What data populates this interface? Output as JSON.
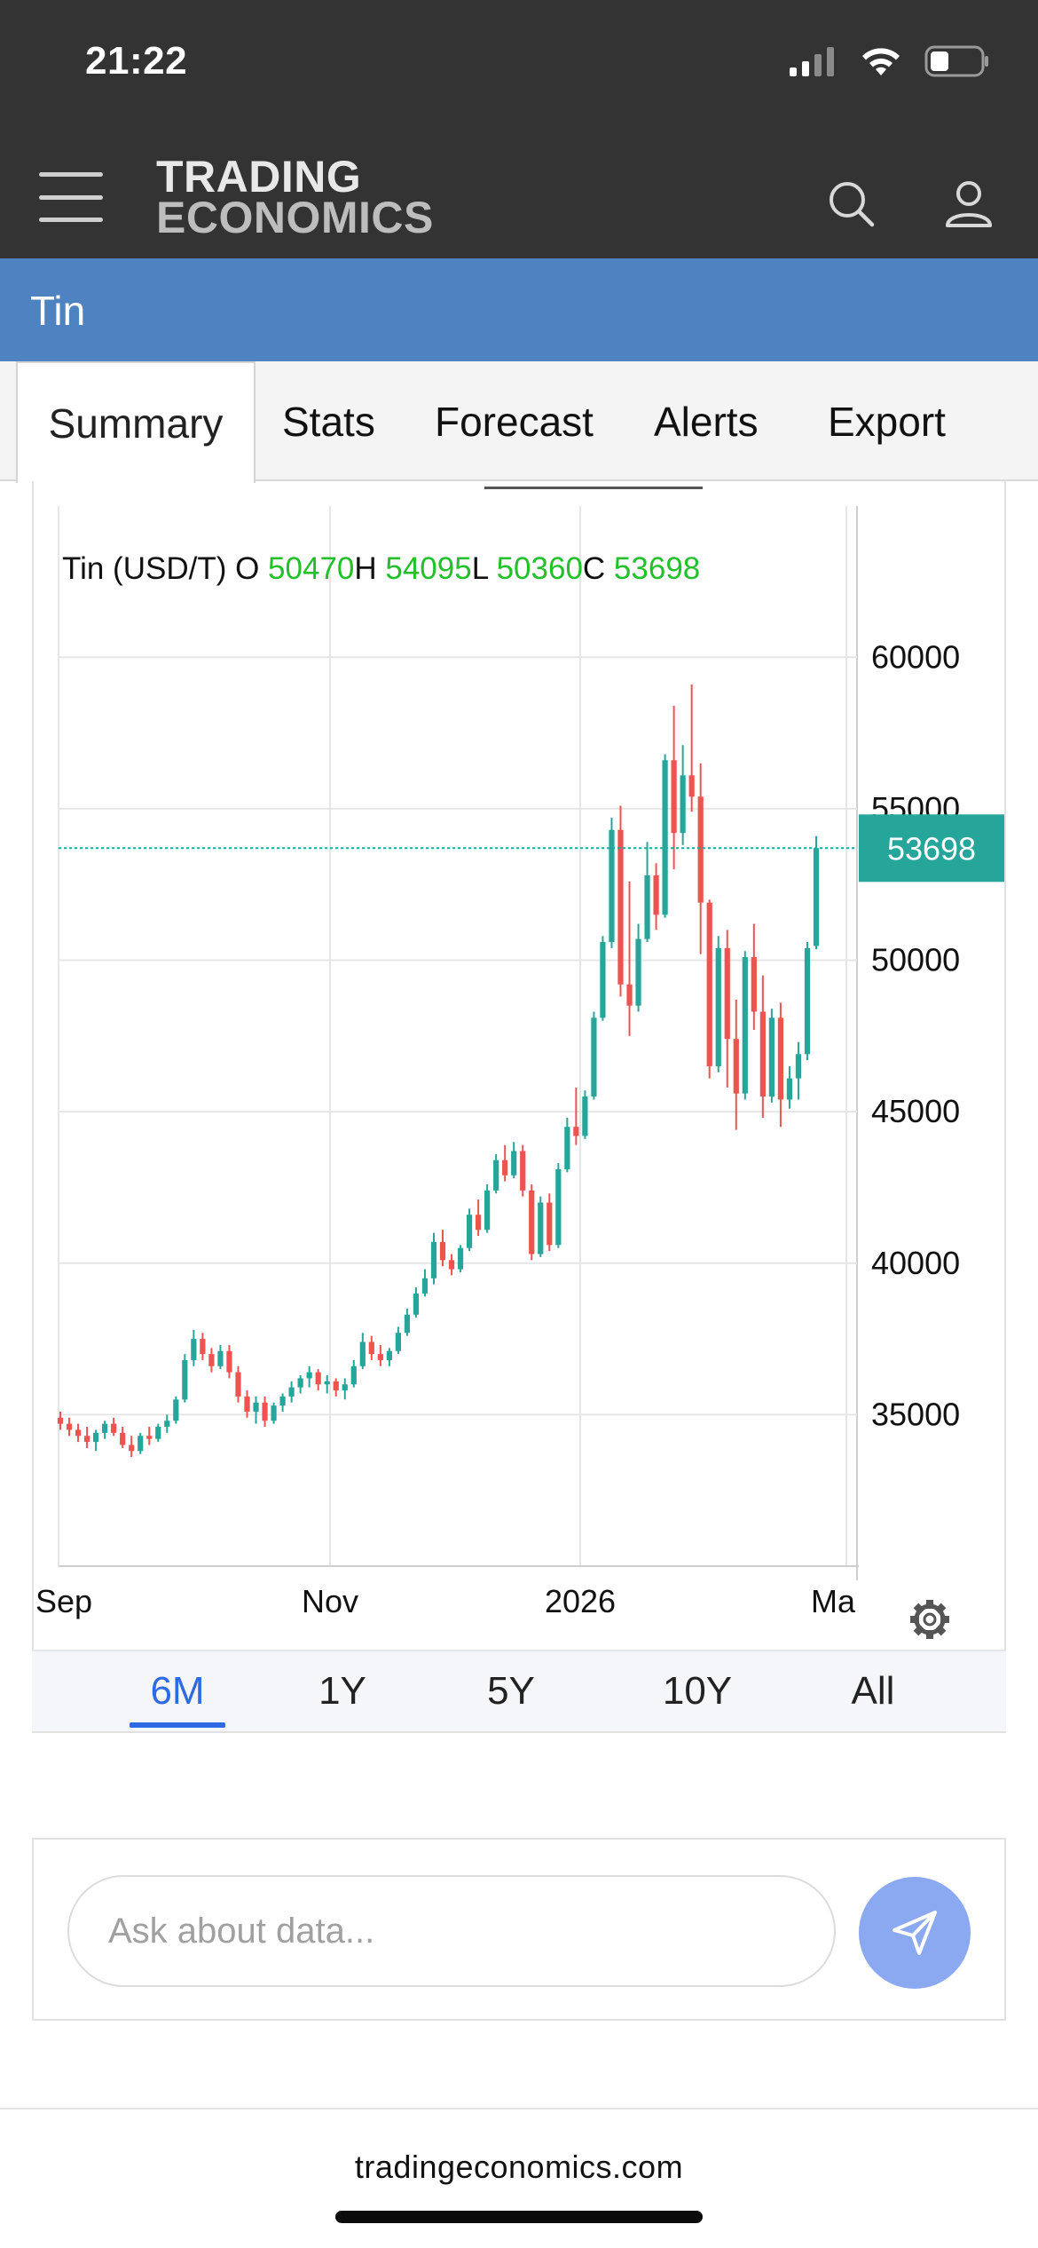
{
  "status_bar": {
    "time": "21:22"
  },
  "header": {
    "logo_line1": "TRADING",
    "logo_line2": "ECONOMICS"
  },
  "title_bar": {
    "title": "Tin"
  },
  "tabs": [
    {
      "label": "Summary",
      "active": true
    },
    {
      "label": "Stats",
      "active": false
    },
    {
      "label": "Forecast",
      "active": false
    },
    {
      "label": "Alerts",
      "active": false
    },
    {
      "label": "Export",
      "active": false
    }
  ],
  "chart_data": {
    "type": "candlestick",
    "ohlc_legend": {
      "symbol": "Tin (USD/T)",
      "open_label": "O",
      "open": "50470",
      "high_label": "H",
      "high": "54095",
      "low_label": "L",
      "low": "50360",
      "close_label": "C",
      "close": "53698"
    },
    "last_price": "53698",
    "y_ticks": [
      "60000",
      "55000",
      "50000",
      "45000",
      "40000",
      "35000"
    ],
    "x_ticks": [
      "Sep",
      "Nov",
      "2026",
      "Ma"
    ],
    "ylim": [
      30000,
      62000
    ],
    "colors": {
      "up": "#26a69a",
      "down": "#ef5350",
      "grid": "#e6e6e6",
      "price_line": "#26a69a",
      "legend_value": "#22c02a"
    },
    "candles": [
      [
        34900,
        35100,
        34500,
        34700
      ],
      [
        34700,
        34900,
        34300,
        34500
      ],
      [
        34500,
        34700,
        34100,
        34300
      ],
      [
        34300,
        34600,
        33900,
        34100
      ],
      [
        34100,
        34500,
        33800,
        34400
      ],
      [
        34400,
        34800,
        34200,
        34700
      ],
      [
        34700,
        34900,
        34300,
        34400
      ],
      [
        34400,
        34600,
        33900,
        34000
      ],
      [
        34000,
        34300,
        33600,
        33800
      ],
      [
        33800,
        34400,
        33700,
        34300
      ],
      [
        34300,
        34600,
        34000,
        34200
      ],
      [
        34200,
        34700,
        34100,
        34600
      ],
      [
        34600,
        35000,
        34400,
        34800
      ],
      [
        34800,
        35600,
        34700,
        35500
      ],
      [
        35500,
        37000,
        35400,
        36800
      ],
      [
        36800,
        37800,
        36600,
        37500
      ],
      [
        37500,
        37700,
        36800,
        37000
      ],
      [
        37000,
        37200,
        36400,
        36600
      ],
      [
        36600,
        37300,
        36500,
        37100
      ],
      [
        37100,
        37300,
        36200,
        36400
      ],
      [
        36400,
        36600,
        35400,
        35600
      ],
      [
        35600,
        35800,
        34900,
        35100
      ],
      [
        35100,
        35600,
        34700,
        35400
      ],
      [
        35400,
        35600,
        34600,
        34800
      ],
      [
        34800,
        35400,
        34700,
        35300
      ],
      [
        35300,
        35700,
        35100,
        35600
      ],
      [
        35600,
        36100,
        35400,
        35900
      ],
      [
        35900,
        36300,
        35700,
        36200
      ],
      [
        36200,
        36600,
        35900,
        36400
      ],
      [
        36400,
        36500,
        35800,
        36000
      ],
      [
        36000,
        36300,
        35700,
        36100
      ],
      [
        36100,
        36200,
        35600,
        35800
      ],
      [
        35800,
        36200,
        35500,
        36000
      ],
      [
        36000,
        36800,
        35900,
        36600
      ],
      [
        36600,
        37700,
        36500,
        37400
      ],
      [
        37400,
        37600,
        36800,
        37000
      ],
      [
        37000,
        37300,
        36600,
        36800
      ],
      [
        36800,
        37200,
        36600,
        37100
      ],
      [
        37100,
        37900,
        37000,
        37700
      ],
      [
        37700,
        38500,
        37600,
        38300
      ],
      [
        38300,
        39200,
        38200,
        39000
      ],
      [
        39000,
        39800,
        38900,
        39500
      ],
      [
        39500,
        41000,
        39300,
        40700
      ],
      [
        40700,
        41100,
        39900,
        40100
      ],
      [
        40100,
        40300,
        39600,
        39800
      ],
      [
        39800,
        40600,
        39700,
        40500
      ],
      [
        40500,
        41800,
        40400,
        41600
      ],
      [
        41600,
        42100,
        40900,
        41100
      ],
      [
        41100,
        42600,
        41000,
        42400
      ],
      [
        42400,
        43600,
        42300,
        43400
      ],
      [
        43400,
        43900,
        42700,
        42900
      ],
      [
        42900,
        44000,
        42800,
        43700
      ],
      [
        43700,
        43900,
        42200,
        42400
      ],
      [
        42400,
        42600,
        40100,
        40300
      ],
      [
        40300,
        42200,
        40200,
        42000
      ],
      [
        42000,
        42300,
        40400,
        40600
      ],
      [
        40600,
        43300,
        40500,
        43100
      ],
      [
        43100,
        44800,
        43000,
        44500
      ],
      [
        44500,
        45800,
        43900,
        44200
      ],
      [
        44200,
        45700,
        44100,
        45500
      ],
      [
        45500,
        48300,
        45400,
        48100
      ],
      [
        48100,
        50800,
        48000,
        50600
      ],
      [
        50600,
        54700,
        50400,
        54300
      ],
      [
        54300,
        55100,
        48800,
        49200
      ],
      [
        49200,
        52600,
        47500,
        48500
      ],
      [
        48500,
        51200,
        48300,
        50700
      ],
      [
        50700,
        53900,
        50600,
        52800
      ],
      [
        52800,
        53200,
        51000,
        51500
      ],
      [
        51500,
        56800,
        51400,
        56600
      ],
      [
        56600,
        58400,
        53000,
        54200
      ],
      [
        54200,
        57100,
        53800,
        56100
      ],
      [
        56100,
        59100,
        54900,
        55400
      ],
      [
        55400,
        56500,
        50200,
        51900
      ],
      [
        51900,
        52000,
        46100,
        46500
      ],
      [
        46500,
        50800,
        46300,
        50400
      ],
      [
        50400,
        51000,
        45800,
        47400
      ],
      [
        47400,
        48700,
        44400,
        45600
      ],
      [
        45600,
        50300,
        45400,
        50100
      ],
      [
        50100,
        51200,
        47700,
        48300
      ],
      [
        48300,
        49500,
        44800,
        45500
      ],
      [
        45500,
        48400,
        45300,
        48100
      ],
      [
        48100,
        48600,
        44500,
        45400
      ],
      [
        45400,
        46500,
        45100,
        46100
      ],
      [
        46100,
        47300,
        45400,
        46900
      ],
      [
        46900,
        50600,
        46700,
        50400
      ],
      [
        50470,
        54095,
        50360,
        53698
      ]
    ]
  },
  "range_buttons": [
    {
      "label": "6M",
      "active": true
    },
    {
      "label": "1Y",
      "active": false
    },
    {
      "label": "5Y",
      "active": false
    },
    {
      "label": "10Y",
      "active": false
    },
    {
      "label": "All",
      "active": false
    }
  ],
  "ask": {
    "placeholder": "Ask about data..."
  },
  "footer": {
    "link": "tradingeconomics.com"
  },
  "icons": {
    "settings": "gear-icon",
    "send": "paper-plane-icon",
    "search": "search-icon",
    "account": "user-icon",
    "menu": "hamburger-icon"
  }
}
